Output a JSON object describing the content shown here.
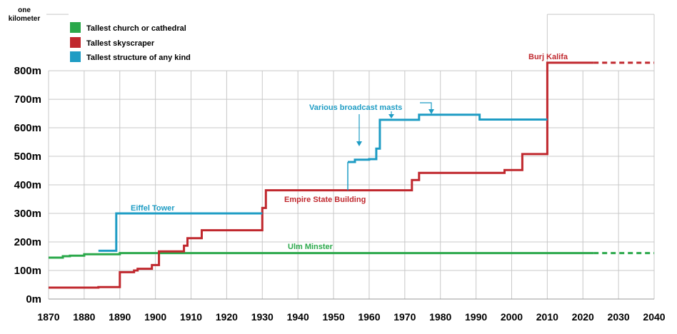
{
  "colors": {
    "church": "#2aa84a",
    "skyscraper": "#c0282e",
    "structure": "#1e9cc4",
    "grid": "#c8c8c8"
  },
  "chart_data": {
    "type": "line",
    "ylabel": "one kilometer",
    "xlim": [
      1870,
      2040
    ],
    "ylim": [
      0,
      1000
    ],
    "x_ticks": [
      "1870",
      "1880",
      "1890",
      "1900",
      "1910",
      "1920",
      "1930",
      "1940",
      "1950",
      "1960",
      "1970",
      "1980",
      "1990",
      "2000",
      "2010",
      "2020",
      "2030",
      "2040"
    ],
    "y_ticks": [
      {
        "value": 0,
        "label": "0m"
      },
      {
        "value": 100,
        "label": "100m"
      },
      {
        "value": 200,
        "label": "200m"
      },
      {
        "value": 300,
        "label": "300m"
      },
      {
        "value": 400,
        "label": "400m"
      },
      {
        "value": 500,
        "label": "500m"
      },
      {
        "value": 600,
        "label": "600m"
      },
      {
        "value": 700,
        "label": "700m"
      },
      {
        "value": 800,
        "label": "800m"
      }
    ],
    "grid": true,
    "legend_position": "top-left",
    "series": [
      {
        "name": "Tallest church or cathedral",
        "color_key": "church",
        "steps": [
          [
            1870,
            145
          ],
          [
            1874,
            150
          ],
          [
            1876,
            152
          ],
          [
            1880,
            157
          ],
          [
            1890,
            161
          ],
          [
            2023,
            161
          ]
        ],
        "projection": [
          [
            2023,
            161
          ],
          [
            2040,
            161
          ]
        ]
      },
      {
        "name": "Tallest skyscraper",
        "color_key": "skyscraper",
        "steps": [
          [
            1870,
            40
          ],
          [
            1884,
            42
          ],
          [
            1890,
            94
          ],
          [
            1894,
            100
          ],
          [
            1895,
            106
          ],
          [
            1899,
            119
          ],
          [
            1901,
            167
          ],
          [
            1908,
            187
          ],
          [
            1909,
            213
          ],
          [
            1913,
            241
          ],
          [
            1930,
            319
          ],
          [
            1931,
            381
          ],
          [
            1972,
            417
          ],
          [
            1974,
            442
          ],
          [
            1998,
            452
          ],
          [
            2003,
            508
          ],
          [
            2010,
            828
          ],
          [
            2023,
            828
          ]
        ],
        "projection": [
          [
            2023,
            828
          ],
          [
            2040,
            828
          ]
        ]
      },
      {
        "name": "Tallest structure of any kind",
        "color_key": "structure",
        "steps": [
          [
            1884,
            169
          ],
          [
            1889,
            300
          ],
          [
            1930,
            300
          ]
        ],
        "steps2": [
          [
            1954,
            480
          ],
          [
            1956,
            488
          ],
          [
            1960,
            490
          ],
          [
            1962,
            527
          ],
          [
            1963,
            628
          ],
          [
            1974,
            646
          ],
          [
            1991,
            629
          ],
          [
            2010,
            629
          ]
        ]
      }
    ],
    "annotations": [
      {
        "text": "Eiffel Tower",
        "color_key": "structure"
      },
      {
        "text": "Various broadcast masts",
        "color_key": "structure"
      },
      {
        "text": "Ulm Minster",
        "color_key": "church"
      },
      {
        "text": "Empire State Building",
        "color_key": "skyscraper"
      },
      {
        "text": "Burj Kalifa",
        "color_key": "skyscraper"
      }
    ]
  },
  "legend": [
    {
      "label": "Tallest church or cathedral",
      "color_key": "church"
    },
    {
      "label": "Tallest skyscraper",
      "color_key": "skyscraper"
    },
    {
      "label": "Tallest structure of any kind",
      "color_key": "structure"
    }
  ],
  "header": {
    "ylabel_line1": "one",
    "ylabel_line2": "kilometer"
  }
}
